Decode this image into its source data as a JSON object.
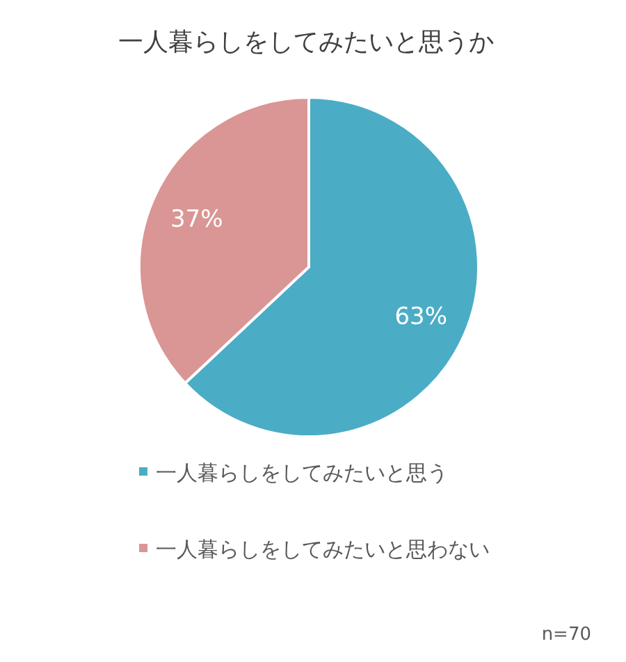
{
  "chart_data": {
    "type": "pie",
    "title": "一人暮らしをしてみたいと思うか",
    "categories": [
      "一人暮らしをしてみたいと思う",
      "一人暮らしをしてみたいと思わない"
    ],
    "values": [
      63,
      37
    ],
    "colors": [
      "#4bacc6",
      "#d99694"
    ],
    "value_labels": [
      "63%",
      "37%"
    ],
    "legend": "bottom",
    "annotations": [
      "n=70"
    ]
  }
}
